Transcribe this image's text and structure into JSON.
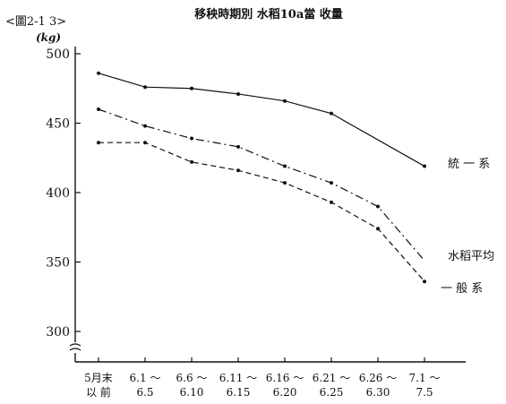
{
  "figure_label": "<圖2-1 3>",
  "chart_data": {
    "type": "line",
    "title": "移秧時期別 水稻10a當 收量",
    "ylabel": "(kg)",
    "xlabel": "",
    "ylim": [
      300,
      500
    ],
    "yticks": [
      "300",
      "350",
      "400",
      "450",
      "500"
    ],
    "axis_break": true,
    "grid": false,
    "categories": [
      [
        "5月末",
        "以 前"
      ],
      [
        "6.1 ～",
        "6.5"
      ],
      [
        "6.6 ～",
        "6.10"
      ],
      [
        "6.11 ～",
        "6.15"
      ],
      [
        "6.16 ～",
        "6.20"
      ],
      [
        "6.21 ～",
        "6.25"
      ],
      [
        "6.26 ～",
        "6.30"
      ],
      [
        "7.1 ～",
        "7.5"
      ]
    ],
    "series": [
      {
        "name": "統 一 系",
        "style": "solid",
        "values": [
          486,
          476,
          475,
          471,
          466,
          457,
          null,
          419
        ]
      },
      {
        "name": "水稻平均",
        "style": "dashdot",
        "values": [
          460,
          448,
          439,
          433,
          419,
          407,
          390,
          351
        ]
      },
      {
        "name": "一 般 系",
        "style": "dashed",
        "values": [
          436,
          436,
          422,
          416,
          407,
          393,
          374,
          336
        ]
      }
    ],
    "colors": {
      "line": "#111111"
    }
  }
}
